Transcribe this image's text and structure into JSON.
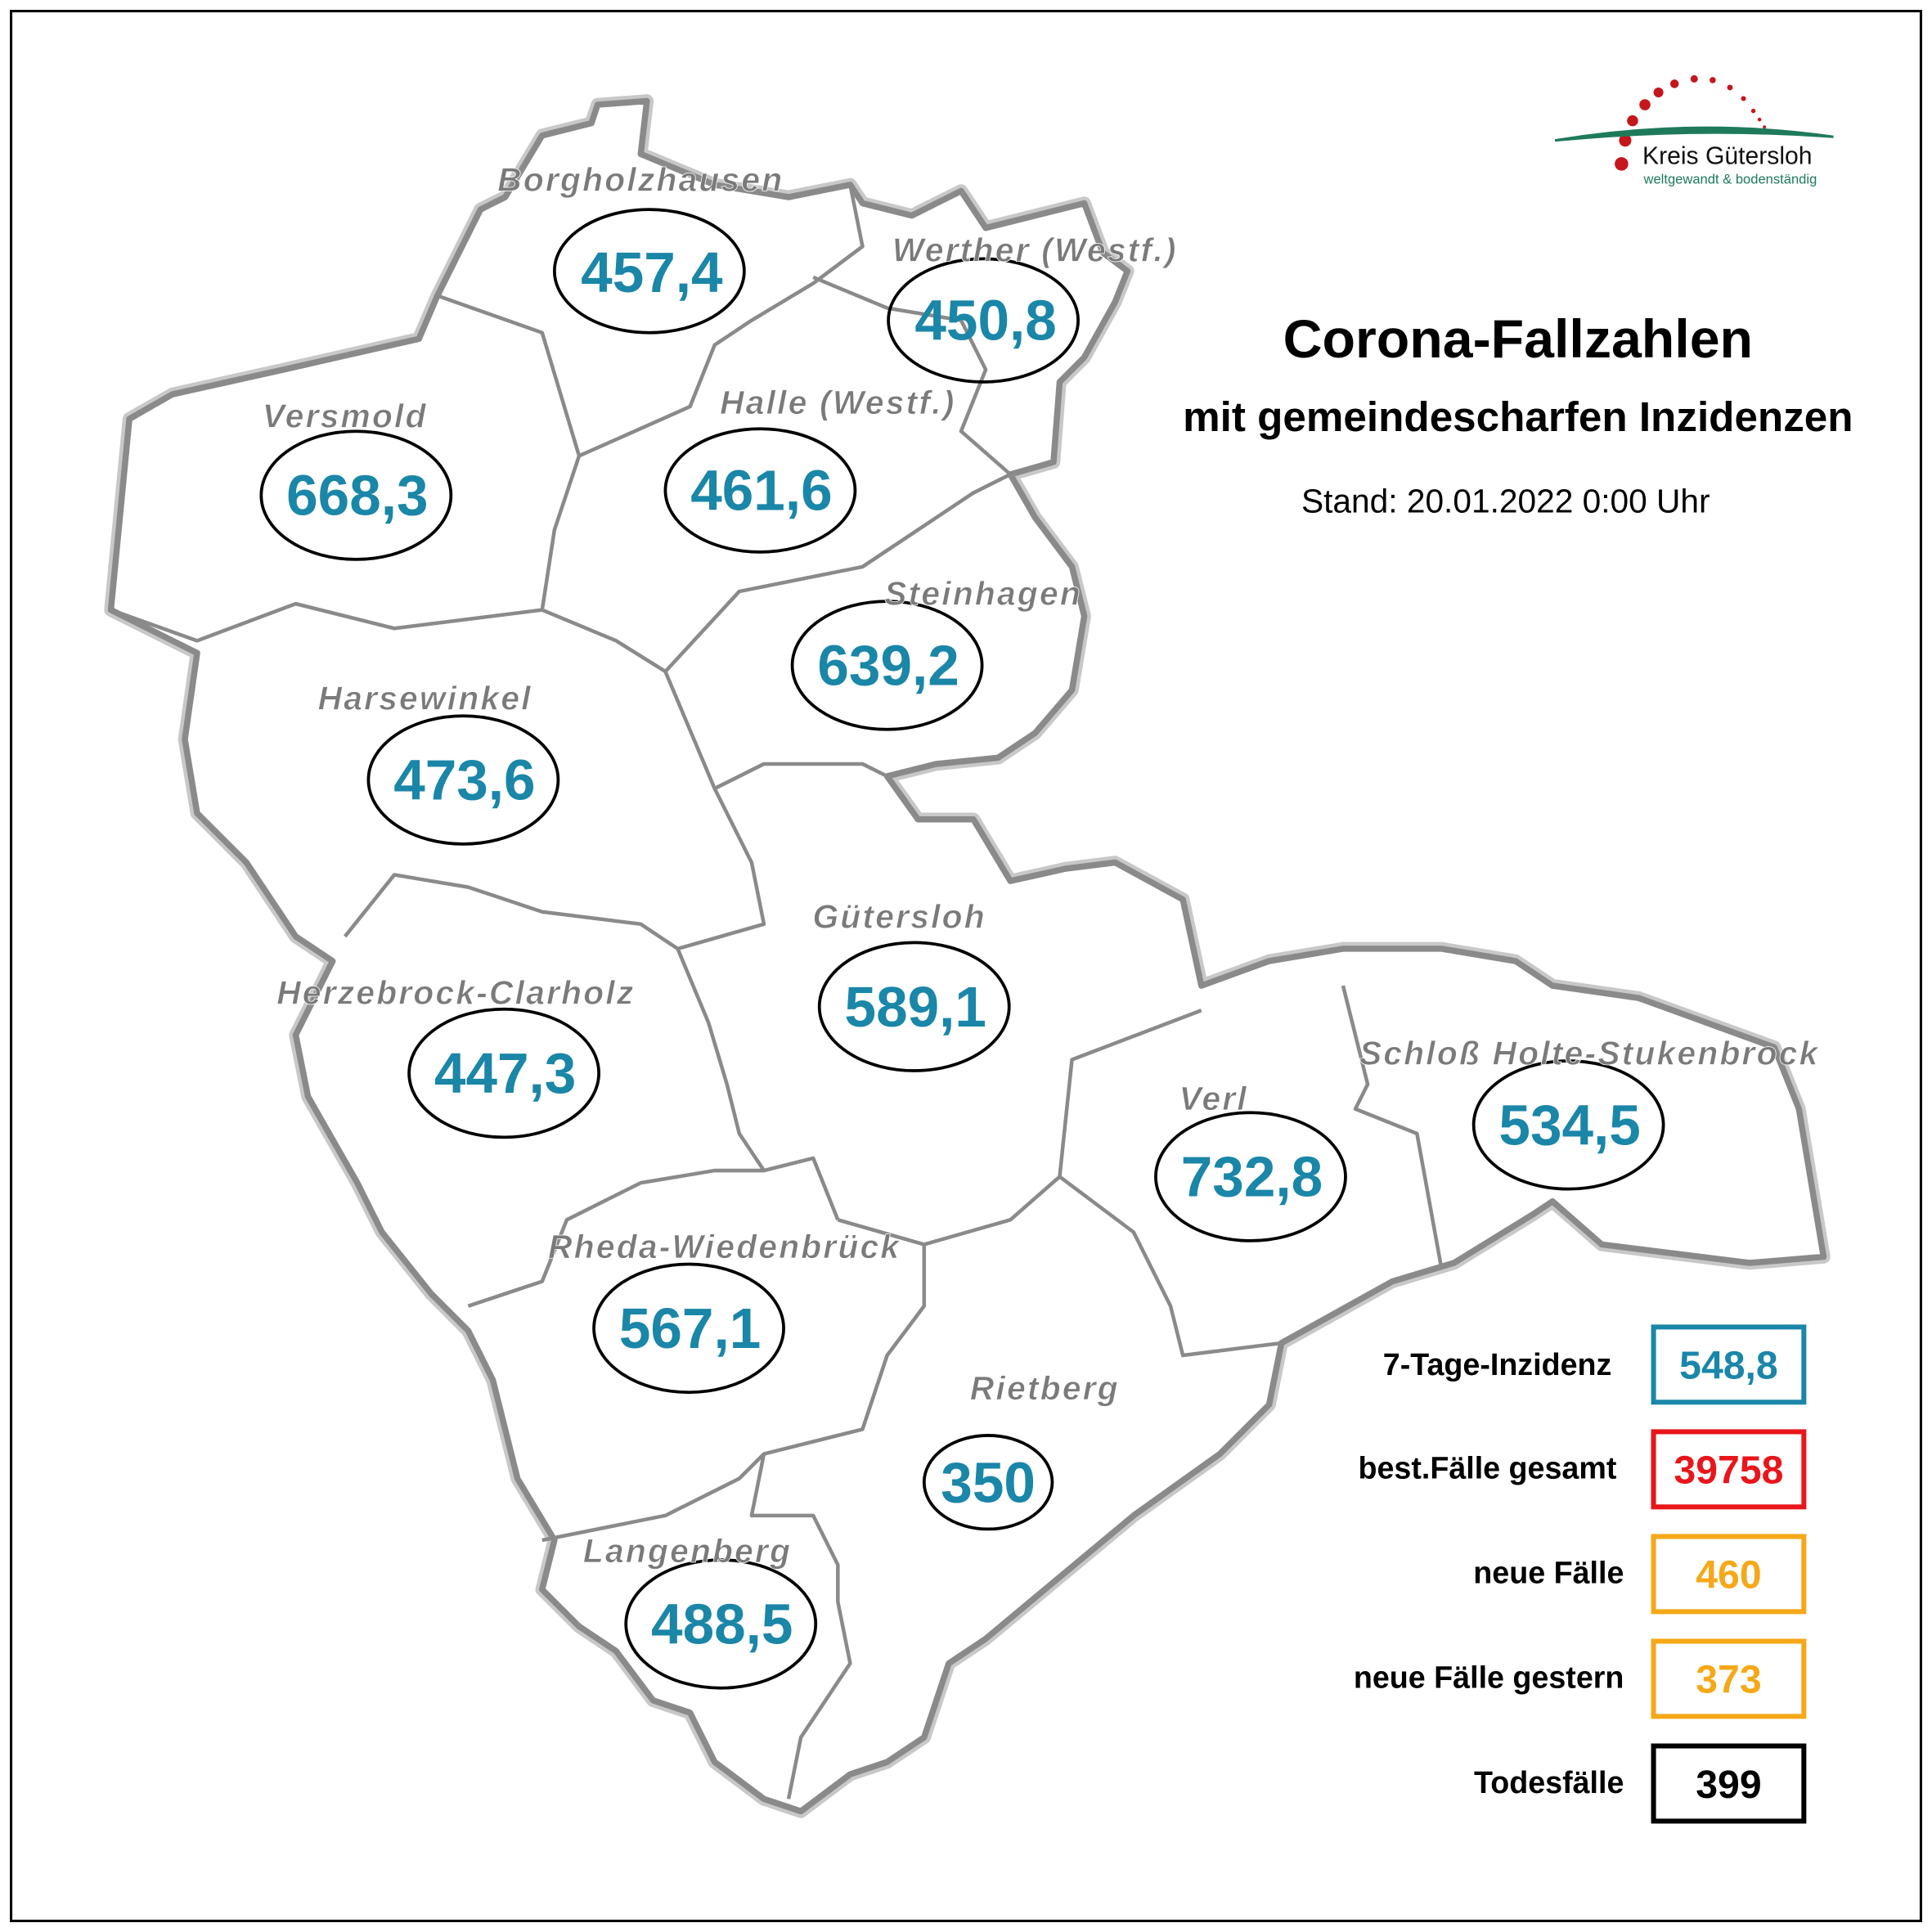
{
  "header": {
    "title": "Corona-Fallzahlen",
    "subtitle": "mit gemeindescharfen Inzidenzen",
    "stand": "Stand: 20.01.2022 0:00 Uhr"
  },
  "logo": {
    "name": "Kreis Gütersloh",
    "tagline": "weltgewandt & bodenständig",
    "colors": {
      "dots": "#c4161c",
      "arc": "#1e7a5a",
      "tagline": "#1e7a5a"
    }
  },
  "colors": {
    "incidence": "#1a86a8",
    "total": "#e8161b",
    "new": "#f5a818",
    "deaths": "#000000",
    "label": "#7a7a7a",
    "border": "#8a8a8a"
  },
  "municipalities": [
    {
      "name": "Borgholzhausen",
      "incidence": "457,4"
    },
    {
      "name": "Werther (Westf.)",
      "incidence": "450,8"
    },
    {
      "name": "Halle (Westf.)",
      "incidence": "461,6"
    },
    {
      "name": "Versmold",
      "incidence": "668,3"
    },
    {
      "name": "Steinhagen",
      "incidence": "639,2"
    },
    {
      "name": "Harsewinkel",
      "incidence": "473,6"
    },
    {
      "name": "Gütersloh",
      "incidence": "589,1"
    },
    {
      "name": "Herzebrock-Clarholz",
      "incidence": "447,3"
    },
    {
      "name": "Verl",
      "incidence": "732,8"
    },
    {
      "name": "Schloß Holte-Stukenbrock",
      "incidence": "534,5"
    },
    {
      "name": "Rheda-Wiedenbrück",
      "incidence": "567,1"
    },
    {
      "name": "Rietberg",
      "incidence": "350"
    },
    {
      "name": "Langenberg",
      "incidence": "488,5"
    }
  ],
  "legend": [
    {
      "label": "7-Tage-Inzidenz",
      "value": "548,8",
      "color": "#1a86a8"
    },
    {
      "label": "best.Fälle gesamt",
      "value": "39758",
      "color": "#e8161b"
    },
    {
      "label": "neue Fälle",
      "value": "460",
      "color": "#f5a818"
    },
    {
      "label": "neue Fälle gestern",
      "value": "373",
      "color": "#f5a818"
    },
    {
      "label": "Todesfälle",
      "value": "399",
      "color": "#000000"
    }
  ]
}
